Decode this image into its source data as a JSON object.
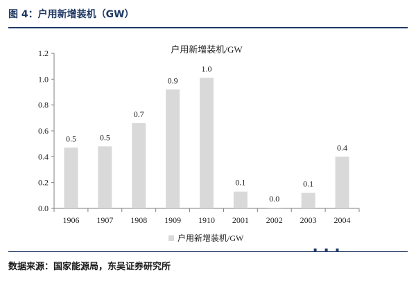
{
  "figure": {
    "title": "图 4：户用新增装机（GW）",
    "source": "数据来源：国家能源局，东吴证券研究所",
    "dots": "▪ ▪ ▪"
  },
  "chart_data": {
    "type": "bar",
    "title": "户用新增装机/GW",
    "categories": [
      "1906",
      "1907",
      "1908",
      "1909",
      "1910",
      "2001",
      "2002",
      "2003",
      "2004"
    ],
    "series": [
      {
        "name": "户用新增装机/GW",
        "values": [
          0.47,
          0.48,
          0.66,
          0.92,
          1.01,
          0.13,
          0.004,
          0.12,
          0.4
        ],
        "data_labels": [
          "0.5",
          "0.5",
          "0.7",
          "0.9",
          "1.0",
          "0.1",
          "0.0",
          "0.1",
          "0.4"
        ],
        "color": "#d9d9d9"
      }
    ],
    "ylim": [
      0,
      1.2
    ],
    "yticks": [
      "0.0",
      "0.2",
      "0.4",
      "0.6",
      "0.8",
      "1.0",
      "1.2"
    ],
    "legend_position": "bottom",
    "grid": false
  }
}
